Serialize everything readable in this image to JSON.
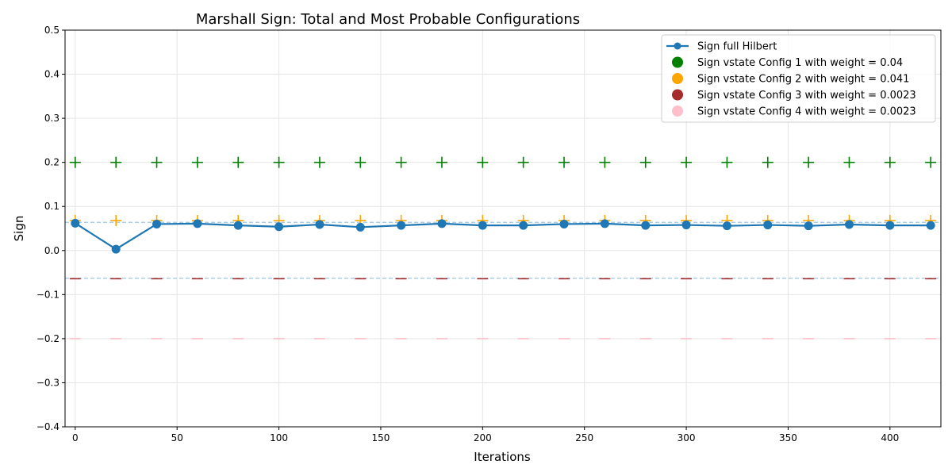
{
  "chart_data": {
    "type": "line",
    "title": "Marshall Sign: Total and Most Probable Configurations",
    "xlabel": "Iterations",
    "ylabel": "Sign",
    "xlim": [
      -5,
      425
    ],
    "ylim": [
      -0.4,
      0.5
    ],
    "xticks": [
      0,
      50,
      100,
      150,
      200,
      250,
      300,
      350,
      400
    ],
    "yticks": [
      -0.4,
      -0.3,
      -0.2,
      -0.1,
      0.0,
      0.1,
      0.2,
      0.3,
      0.4,
      0.5
    ],
    "ytick_labels": [
      "−0.4",
      "−0.3",
      "−0.2",
      "−0.1",
      "0.0",
      "0.1",
      "0.2",
      "0.3",
      "0.4",
      "0.5"
    ],
    "xtick_labels": [
      "0",
      "50",
      "100",
      "150",
      "200",
      "250",
      "300",
      "350",
      "400"
    ],
    "grid": true,
    "legend_position": "top-right",
    "x": [
      0,
      20,
      40,
      60,
      80,
      100,
      120,
      140,
      160,
      180,
      200,
      220,
      240,
      260,
      280,
      300,
      320,
      340,
      360,
      380,
      400,
      420
    ],
    "series": [
      {
        "name": "Sign full Hilbert",
        "marker": "line-dot",
        "color": "#1f77b4",
        "values": [
          0.062,
          0.003,
          0.06,
          0.061,
          0.057,
          0.054,
          0.059,
          0.053,
          0.057,
          0.061,
          0.057,
          0.057,
          0.06,
          0.061,
          0.057,
          0.058,
          0.056,
          0.058,
          0.056,
          0.059,
          0.057,
          0.057
        ]
      },
      {
        "name": "Sign vstate Config 1 with weight = 0.04",
        "marker": "plus",
        "color": "#008000",
        "values": [
          0.2,
          0.2,
          0.2,
          0.2,
          0.2,
          0.2,
          0.2,
          0.2,
          0.2,
          0.2,
          0.2,
          0.2,
          0.2,
          0.2,
          0.2,
          0.2,
          0.2,
          0.2,
          0.2,
          0.2,
          0.2,
          0.2
        ]
      },
      {
        "name": "Sign vstate Config 2 with weight = 0.041",
        "marker": "plus",
        "color": "#ffa500",
        "values": [
          0.068,
          0.068,
          0.068,
          0.068,
          0.068,
          0.068,
          0.068,
          0.068,
          0.068,
          0.068,
          0.068,
          0.068,
          0.068,
          0.068,
          0.068,
          0.068,
          0.068,
          0.068,
          0.068,
          0.068,
          0.068,
          0.068
        ]
      },
      {
        "name": "Sign vstate Config 3 with weight = 0.0023",
        "marker": "minus",
        "color": "#a52a2a",
        "values": [
          -0.064,
          -0.064,
          -0.064,
          -0.064,
          -0.064,
          -0.064,
          -0.064,
          -0.064,
          -0.064,
          -0.064,
          -0.064,
          -0.064,
          -0.064,
          -0.064,
          -0.064,
          -0.064,
          -0.064,
          -0.064,
          -0.064,
          -0.064,
          -0.064,
          -0.064
        ]
      },
      {
        "name": "Sign vstate Config 4 with weight = 0.0023",
        "marker": "minus",
        "color": "#ffc0cb",
        "values": [
          -0.2,
          -0.2,
          -0.2,
          -0.2,
          -0.2,
          -0.2,
          -0.2,
          -0.2,
          -0.2,
          -0.2,
          -0.2,
          -0.2,
          -0.2,
          -0.2,
          -0.2,
          -0.2,
          -0.2,
          -0.2,
          -0.2,
          -0.2,
          -0.2,
          -0.2
        ]
      }
    ],
    "reference_lines": [
      0.064,
      -0.063
    ],
    "reference_color": "#9ec5e0"
  }
}
